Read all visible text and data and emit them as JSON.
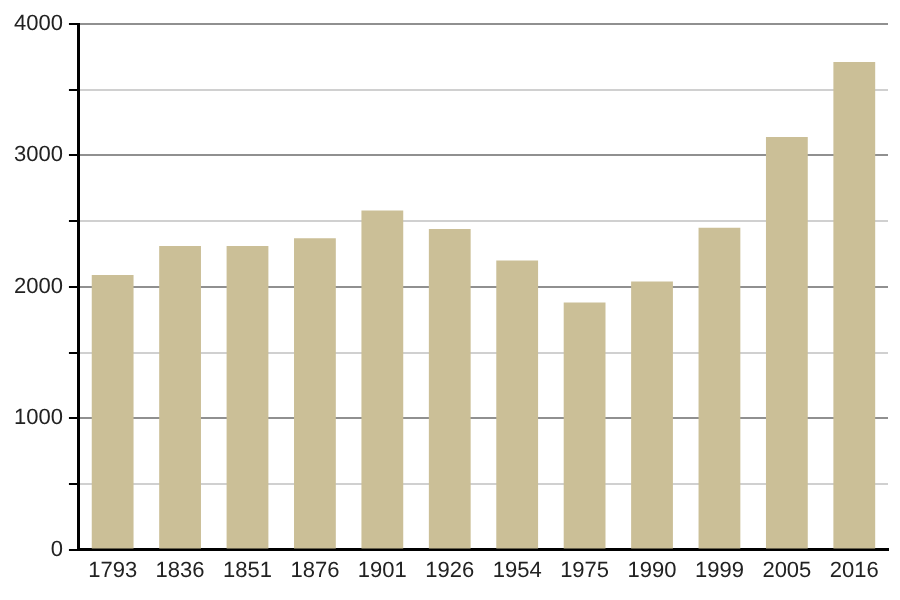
{
  "chart_data": {
    "type": "bar",
    "categories": [
      "1793",
      "1836",
      "1851",
      "1876",
      "1901",
      "1926",
      "1954",
      "1975",
      "1990",
      "1999",
      "2005",
      "2016"
    ],
    "values": [
      2090,
      2310,
      2310,
      2370,
      2580,
      2440,
      2200,
      1880,
      2040,
      2450,
      3140,
      3710
    ],
    "color": "#cbbf97",
    "ylim": [
      0,
      4000
    ],
    "yticks": [
      0,
      {
        "value": 500,
        "label": null
      },
      1000,
      {
        "value": 1500,
        "label": null
      },
      2000,
      {
        "value": 2500,
        "label": null
      },
      3000,
      {
        "value": 3500,
        "label": null
      },
      4000
    ],
    "grid": true
  }
}
